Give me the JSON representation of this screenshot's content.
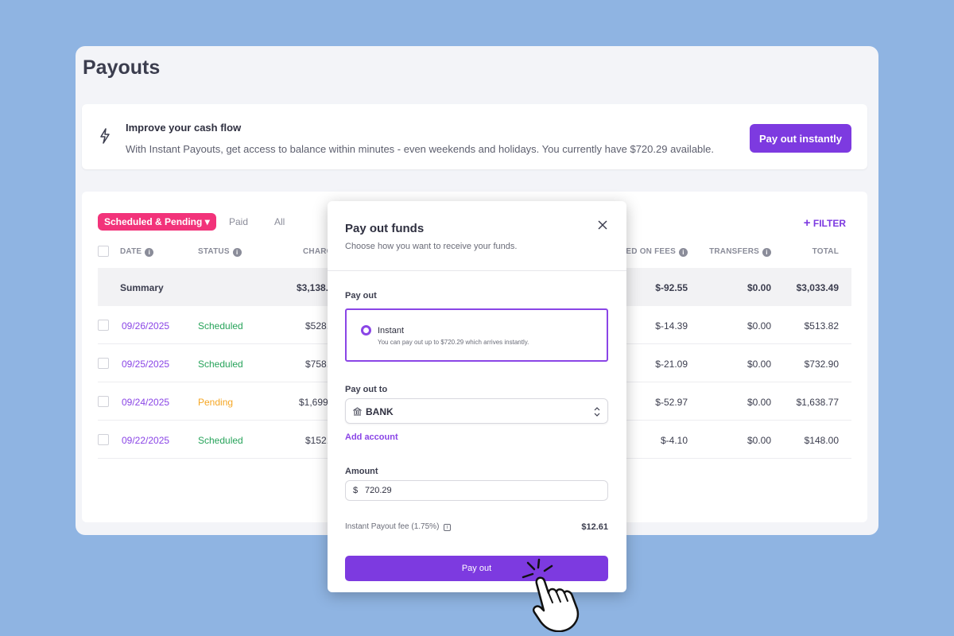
{
  "page": {
    "title": "Payouts"
  },
  "banner": {
    "icon": "lightning-icon",
    "title": "Improve your cash flow",
    "text": "With Instant Payouts, get access to balance within minutes - even weekends and holidays. You currently have $720.29 available.",
    "button": "Pay out instantly"
  },
  "tabs": {
    "active": "Scheduled & Pending",
    "paid": "Paid",
    "all": "All"
  },
  "filter": "FILTER",
  "table": {
    "headers": {
      "date": "DATE",
      "status": "STATUS",
      "charges": "CHARG",
      "fees": "SSED ON FEES",
      "transfers": "TRANSFERS",
      "total": "TOTAL"
    },
    "summary": {
      "label": "Summary",
      "charges": "$3,138.",
      "fees": "$-92.55",
      "transfers": "$0.00",
      "total": "$3,033.49"
    },
    "rows": [
      {
        "date": "09/26/2025",
        "status": "Scheduled",
        "charges": "$528.",
        "fees": "$-14.39",
        "transfers": "$0.00",
        "total": "$513.82"
      },
      {
        "date": "09/25/2025",
        "status": "Scheduled",
        "charges": "$758.",
        "fees": "$-21.09",
        "transfers": "$0.00",
        "total": "$732.90"
      },
      {
        "date": "09/24/2025",
        "status": "Pending",
        "charges": "$1,699.",
        "fees": "$-52.97",
        "transfers": "$0.00",
        "total": "$1,638.77"
      },
      {
        "date": "09/22/2025",
        "status": "Scheduled",
        "charges": "$152.",
        "fees": "$-4.10",
        "transfers": "$0.00",
        "total": "$148.00"
      }
    ]
  },
  "modal": {
    "title": "Pay out funds",
    "subtitle": "Choose how you want to receive your funds.",
    "payout_label": "Pay out",
    "option": {
      "title": "Instant",
      "desc": "You can pay out up to $720.29 which arrives instantly."
    },
    "payout_to_label": "Pay out to",
    "account": "BANK",
    "add_account": "Add account",
    "amount_label": "Amount",
    "currency": "$",
    "amount": "720.29",
    "fee_label": "Instant Payout fee (1.75%)",
    "fee_value": "$12.61",
    "button": "Pay out"
  },
  "colors": {
    "accent": "#7d3ae0",
    "pink": "#f2337a",
    "scheduled": "#27a35a",
    "pending": "#f5a623",
    "date_link": "#8a45e6",
    "background": "#8fb4e2"
  }
}
